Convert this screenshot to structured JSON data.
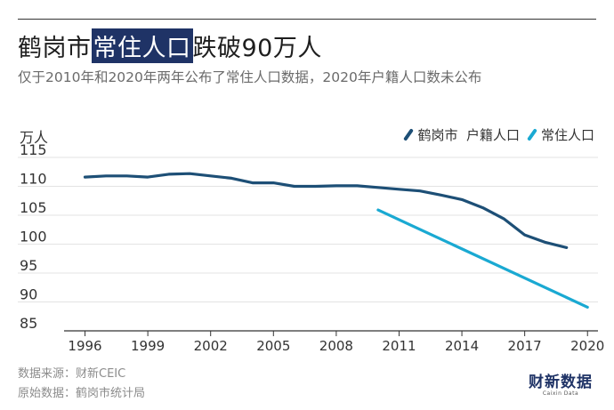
{
  "title": {
    "before": "鹤岗市",
    "highlight": "常住人口",
    "after": "跌破90万人"
  },
  "subtitle": "仅于2010年和2020年两年公布了常住人口数据，2020年户籍人口数未公布",
  "source": {
    "line1": "数据来源：财新CEIC",
    "line2": "原始数据：鹤岗市统计局"
  },
  "brand": {
    "name": "财新数据",
    "sub": "Caixin Data"
  },
  "colors": {
    "huji": "#1d4f76",
    "changzhu": "#1aa9d2",
    "grid": "#e3e3e3",
    "axis": "#333333",
    "highlight_bg": "#1f3366"
  },
  "chart_data": {
    "type": "line",
    "ylabel": "万人",
    "ylim": [
      85,
      117
    ],
    "yticks": [
      85,
      90,
      95,
      100,
      105,
      110,
      115
    ],
    "xlim": [
      1995,
      2020.5
    ],
    "xticks": [
      1996,
      1999,
      2002,
      2005,
      2008,
      2011,
      2014,
      2017,
      2020
    ],
    "grid": true,
    "legend": "top-right",
    "series": [
      {
        "name": "鹤岗市  户籍人口",
        "color": "#1d4f76",
        "x": [
          1996,
          1997,
          1998,
          1999,
          2000,
          2001,
          2002,
          2003,
          2004,
          2005,
          2006,
          2007,
          2008,
          2009,
          2010,
          2011,
          2012,
          2013,
          2014,
          2015,
          2016,
          2017,
          2018,
          2019
        ],
        "y": [
          111.6,
          111.8,
          111.8,
          111.6,
          112.1,
          112.2,
          111.8,
          111.4,
          110.6,
          110.6,
          110.0,
          110.0,
          110.1,
          110.1,
          109.8,
          109.5,
          109.2,
          108.5,
          107.7,
          106.3,
          104.4,
          101.6,
          100.3,
          99.4
        ]
      },
      {
        "name": "常住人口",
        "color": "#1aa9d2",
        "x": [
          2010,
          2020
        ],
        "y": [
          105.9,
          89.1
        ]
      }
    ]
  }
}
